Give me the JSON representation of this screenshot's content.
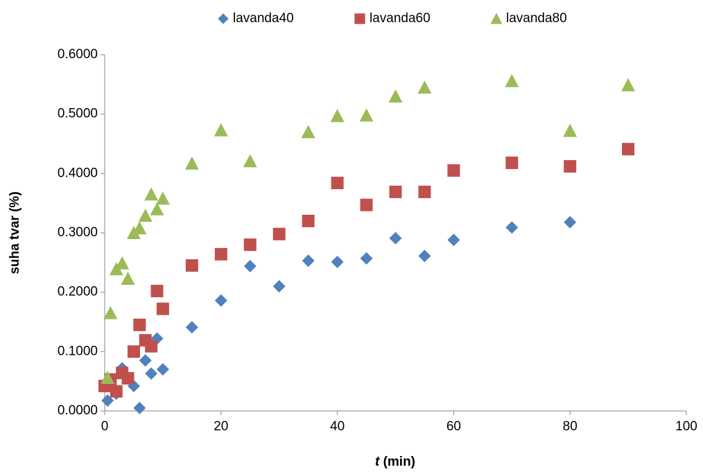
{
  "chart_data": {
    "type": "scatter",
    "x_label": {
      "var": "t",
      "unit": "(min)"
    },
    "y_label": "suha tvar (%)",
    "xlim": [
      0,
      100
    ],
    "xticks": [
      0,
      20,
      40,
      60,
      80,
      100
    ],
    "ylim": [
      0,
      0.6
    ],
    "yticks": [
      {
        "value": 0,
        "label": "0.0000"
      },
      {
        "value": 0.1,
        "label": "0.1000"
      },
      {
        "value": 0.2,
        "label": "0.2000"
      },
      {
        "value": 0.3,
        "label": "0.3000"
      },
      {
        "value": 0.4,
        "label": "0.4000"
      },
      {
        "value": 0.5,
        "label": "0.5000"
      },
      {
        "value": 0.6,
        "label": "0.6000"
      }
    ],
    "grid": false,
    "legend": "top",
    "series": [
      {
        "name": "lavanda40",
        "color": "#4f81bd",
        "marker": "diamond",
        "x": [
          0.5,
          2,
          3,
          5,
          6,
          7,
          8,
          9,
          10,
          15,
          20,
          25,
          30,
          35,
          40,
          45,
          50,
          55,
          60,
          70,
          80
        ],
        "values": [
          0.0175,
          0.029,
          0.072,
          0.042,
          0.005,
          0.085,
          0.063,
          0.122,
          0.07,
          0.141,
          0.186,
          0.244,
          0.21,
          0.253,
          0.251,
          0.257,
          0.291,
          0.261,
          0.288,
          0.309,
          0.318
        ]
      },
      {
        "name": "lavanda60",
        "color": "#c0504d",
        "marker": "square",
        "x": [
          0,
          1,
          2,
          3,
          4,
          5,
          6,
          7,
          8,
          9,
          10,
          15,
          20,
          25,
          30,
          35,
          40,
          45,
          50,
          55,
          60,
          70,
          80,
          90
        ],
        "values": [
          0.042,
          0.053,
          0.033,
          0.064,
          0.055,
          0.1,
          0.145,
          0.119,
          0.109,
          0.202,
          0.172,
          0.245,
          0.264,
          0.28,
          0.298,
          0.32,
          0.384,
          0.347,
          0.369,
          0.369,
          0.405,
          0.418,
          0.412,
          0.441
        ]
      },
      {
        "name": "lavanda80",
        "color": "#9bbb59",
        "marker": "triangle",
        "x": [
          0.5,
          1,
          2,
          3,
          4,
          5,
          6,
          7,
          8,
          9,
          10,
          15,
          20,
          25,
          35,
          40,
          45,
          50,
          55,
          70,
          80,
          90
        ],
        "values": [
          0.056,
          0.165,
          0.239,
          0.249,
          0.223,
          0.3,
          0.308,
          0.329,
          0.365,
          0.34,
          0.358,
          0.417,
          0.473,
          0.421,
          0.47,
          0.497,
          0.498,
          0.53,
          0.545,
          0.556,
          0.472,
          0.549
        ]
      }
    ]
  }
}
